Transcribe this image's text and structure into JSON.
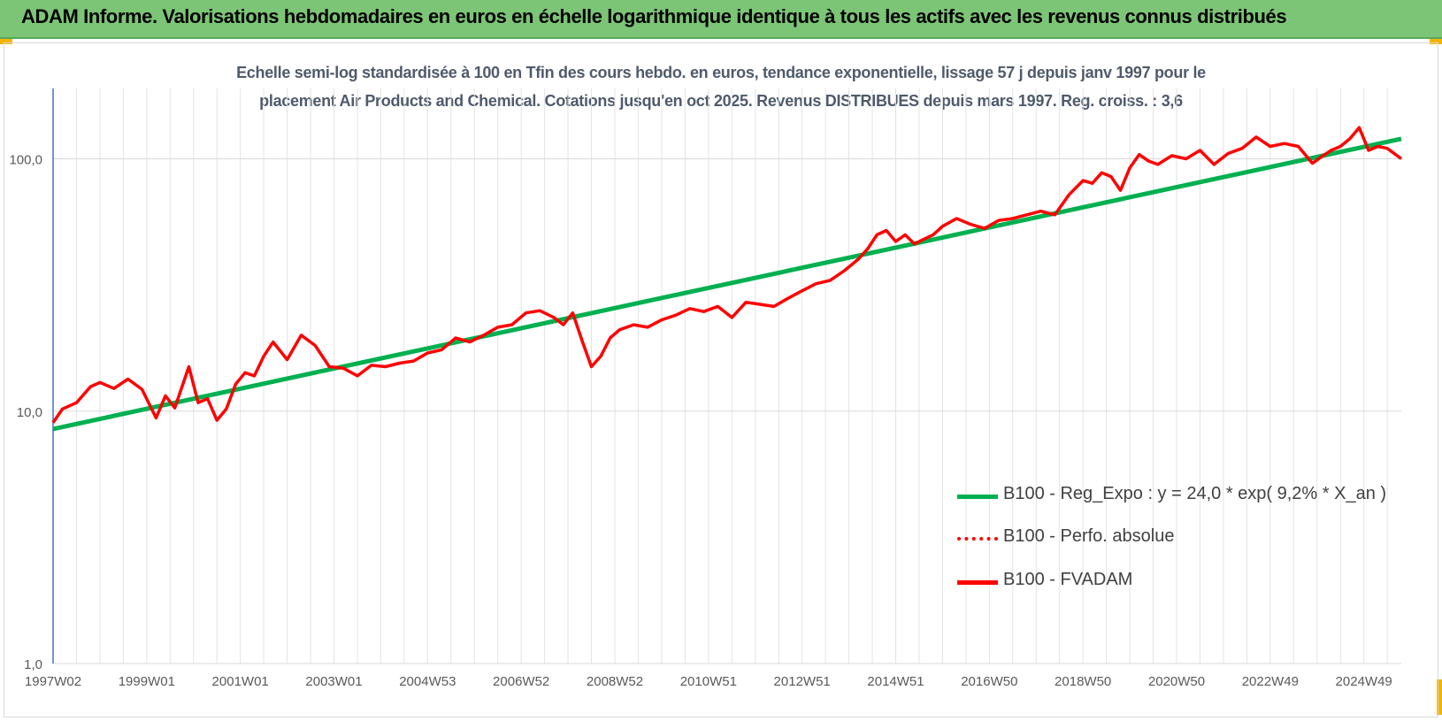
{
  "header": {
    "title": "ADAM Informe. Valorisations hebdomadaires en euros en échelle logarithmique identique à tous les actifs avec les revenus connus distribués"
  },
  "chart_data": {
    "type": "line",
    "title_line1": "Echelle semi-log standardisée à 100 en Tfin des cours hebdo. en euros, tendance exponentielle, lissage 57 j depuis janv 1997 pour le",
    "title_line2": "placement Air Products and Chemical. Cotations jusqu'en oct 2025. Revenus DISTRIBUES depuis mars 1997. Reg. croiss. : 3,6",
    "y_scale": "log",
    "ylim": [
      1,
      190
    ],
    "y_ticks": [
      1,
      10,
      100
    ],
    "y_tick_labels": [
      "1,0",
      "10,0",
      "100,0"
    ],
    "xlim": [
      1997.0,
      2025.8
    ],
    "x_tick_positions": [
      1997.0,
      1999.0,
      2001.0,
      2003.0,
      2005.0,
      2007.0,
      2009.0,
      2011.0,
      2013.0,
      2015.0,
      2017.0,
      2019.0,
      2021.0,
      2023.0,
      2025.0
    ],
    "x_tick_labels": [
      "1997W02",
      "1999W01",
      "2001W01",
      "2003W01",
      "2004W53",
      "2006W52",
      "2008W52",
      "2010W51",
      "2012W51",
      "2014W51",
      "2016W50",
      "2018W50",
      "2020W50",
      "2022W49",
      "2024W49"
    ],
    "grid": true,
    "legend_position": "bottom-right",
    "series": [
      {
        "name": "B100 - Reg_Expo : y = 24,0 * exp( 9,2% *  X_an )",
        "color": "#00b050",
        "style": "solid",
        "x": [
          1997.0,
          2025.8
        ],
        "y": [
          8.5,
          120
        ]
      },
      {
        "name": "B100 - Perfo. absolue",
        "color": "#ff0000",
        "style": "dotted",
        "x": [],
        "y": []
      },
      {
        "name": "B100 - FVADAM",
        "color": "#ff0000",
        "style": "solid",
        "x": [
          1997.0,
          1997.2,
          1997.5,
          1997.8,
          1998.0,
          1998.3,
          1998.6,
          1998.9,
          1999.2,
          1999.4,
          1999.6,
          1999.9,
          2000.1,
          2000.3,
          2000.5,
          2000.7,
          2000.9,
          2001.1,
          2001.3,
          2001.5,
          2001.7,
          2002.0,
          2002.3,
          2002.6,
          2002.9,
          2003.2,
          2003.5,
          2003.8,
          2004.1,
          2004.4,
          2004.7,
          2005.0,
          2005.3,
          2005.6,
          2005.9,
          2006.2,
          2006.5,
          2006.8,
          2007.1,
          2007.4,
          2007.7,
          2007.9,
          2008.1,
          2008.3,
          2008.5,
          2008.7,
          2008.9,
          2009.1,
          2009.4,
          2009.7,
          2010.0,
          2010.3,
          2010.6,
          2010.9,
          2011.2,
          2011.5,
          2011.8,
          2012.1,
          2012.4,
          2012.7,
          2013.0,
          2013.3,
          2013.6,
          2013.9,
          2014.2,
          2014.4,
          2014.6,
          2014.8,
          2015.0,
          2015.2,
          2015.4,
          2015.6,
          2015.8,
          2016.0,
          2016.3,
          2016.6,
          2016.9,
          2017.2,
          2017.5,
          2017.8,
          2018.1,
          2018.4,
          2018.7,
          2019.0,
          2019.2,
          2019.4,
          2019.6,
          2019.8,
          2020.0,
          2020.2,
          2020.4,
          2020.6,
          2020.9,
          2021.2,
          2021.5,
          2021.8,
          2022.1,
          2022.4,
          2022.7,
          2023.0,
          2023.3,
          2023.6,
          2023.9,
          2024.1,
          2024.3,
          2024.5,
          2024.7,
          2024.9,
          2025.1,
          2025.3,
          2025.5,
          2025.8
        ],
        "y": [
          9.0,
          10.2,
          10.8,
          12.5,
          13.0,
          12.3,
          13.4,
          12.2,
          9.4,
          11.5,
          10.3,
          15.0,
          10.8,
          11.2,
          9.2,
          10.2,
          12.8,
          14.2,
          13.8,
          16.5,
          18.8,
          16.0,
          20.0,
          18.2,
          15.0,
          14.8,
          13.8,
          15.2,
          15.0,
          15.5,
          15.8,
          17.0,
          17.5,
          19.5,
          18.8,
          20.0,
          21.5,
          22.0,
          24.5,
          25.0,
          23.5,
          22.0,
          24.5,
          19.0,
          15.0,
          16.5,
          19.5,
          21.0,
          22.0,
          21.5,
          23.0,
          24.0,
          25.5,
          24.8,
          26.0,
          23.5,
          27.0,
          26.5,
          26.0,
          28.0,
          30.0,
          32.0,
          33.0,
          36.0,
          40.0,
          44.0,
          50.0,
          52.0,
          47.0,
          50.0,
          46.0,
          48.0,
          50.0,
          54.0,
          58.0,
          55.0,
          53.0,
          57.0,
          58.0,
          60.0,
          62.0,
          60.0,
          72.0,
          82.0,
          80.0,
          88.0,
          85.0,
          75.0,
          92.0,
          104.0,
          98.0,
          95.0,
          103.0,
          100.0,
          108.0,
          95.0,
          105.0,
          110.0,
          122.0,
          112.0,
          115.0,
          112.0,
          96.0,
          102.0,
          108.0,
          112.0,
          120.0,
          133.0,
          108.0,
          112.0,
          110.0,
          100.0
        ]
      }
    ]
  }
}
